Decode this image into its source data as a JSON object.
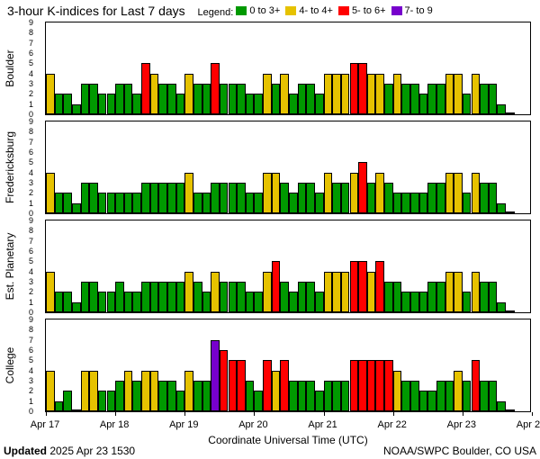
{
  "title": "3-hour K-indices for Last 7 days",
  "legend_label": "Legend:",
  "legend": [
    {
      "label": "0 to 3+",
      "color": "#009900"
    },
    {
      "label": "4- to 4+",
      "color": "#e6c200"
    },
    {
      "label": "5- to 6+",
      "color": "#ff0000"
    },
    {
      "label": "7- to 9",
      "color": "#7700cc"
    }
  ],
  "colors": {
    "bg": "#ffffff",
    "border": "#000000",
    "green": "#009900",
    "yellow": "#e6c200",
    "red": "#ff0000",
    "purple": "#7700cc"
  },
  "y_max": 9,
  "y_ticks": [
    0,
    1,
    2,
    3,
    4,
    5,
    6,
    7,
    8,
    9
  ],
  "x_labels": [
    "Apr 17",
    "Apr 18",
    "Apr 19",
    "Apr 20",
    "Apr 21",
    "Apr 22",
    "Apr 23",
    "Apr 24"
  ],
  "x_axis_label": "Coordinate Universal Time (UTC)",
  "footer_left_bold": "Updated",
  "footer_left_rest": " 2025 Apr 23 1530",
  "footer_right": "NOAA/SWPC Boulder, CO USA",
  "panels": [
    {
      "name": "Boulder",
      "values": [
        4,
        2,
        2,
        1,
        3,
        3,
        2,
        2,
        3,
        3,
        2,
        5,
        4,
        3,
        3,
        2,
        4,
        3,
        3,
        5,
        3,
        3,
        3,
        2,
        2,
        4,
        3,
        4,
        2,
        3,
        3,
        2,
        4,
        4,
        4,
        5,
        5,
        4,
        4,
        3,
        4,
        3,
        3,
        2,
        3,
        3,
        4,
        4,
        2,
        4,
        3,
        3,
        1,
        0,
        null,
        null
      ]
    },
    {
      "name": "Fredericksburg",
      "values": [
        4,
        2,
        2,
        1,
        3,
        3,
        2,
        2,
        2,
        2,
        2,
        3,
        3,
        3,
        3,
        3,
        4,
        2,
        2,
        3,
        3,
        3,
        3,
        2,
        2,
        4,
        4,
        3,
        2,
        3,
        3,
        2,
        4,
        3,
        3,
        4,
        5,
        3,
        4,
        3,
        2,
        2,
        2,
        2,
        3,
        3,
        4,
        4,
        2,
        4,
        3,
        3,
        1,
        0,
        null,
        null
      ]
    },
    {
      "name": "Est. Planetary",
      "values": [
        4,
        2,
        2,
        1,
        3,
        3,
        2,
        2,
        3,
        2,
        2,
        3,
        3,
        3,
        3,
        3,
        4,
        3,
        2,
        4,
        3,
        3,
        3,
        2,
        2,
        4,
        5,
        3,
        2,
        3,
        3,
        2,
        4,
        4,
        4,
        5,
        5,
        4,
        5,
        3,
        3,
        2,
        2,
        2,
        3,
        3,
        4,
        4,
        2,
        4,
        3,
        3,
        1,
        0,
        null,
        null
      ]
    },
    {
      "name": "College",
      "values": [
        4,
        1,
        2,
        0,
        4,
        4,
        2,
        2,
        3,
        4,
        3,
        4,
        4,
        3,
        3,
        2,
        4,
        3,
        3,
        7,
        6,
        5,
        5,
        3,
        2,
        5,
        4,
        5,
        3,
        3,
        3,
        2,
        3,
        3,
        3,
        5,
        5,
        5,
        5,
        5,
        4,
        3,
        3,
        2,
        2,
        3,
        3,
        4,
        3,
        5,
        3,
        3,
        1,
        0,
        null,
        null
      ]
    }
  ]
}
